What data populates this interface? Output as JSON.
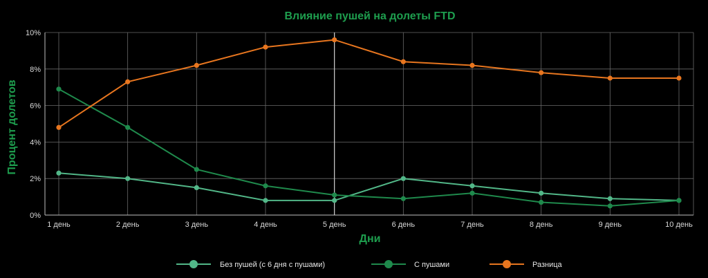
{
  "chart_data": {
    "type": "line",
    "title": "Влияние пушей на долеты FTD",
    "xlabel": "Дни",
    "ylabel": "Процент долетов",
    "categories": [
      "1 день",
      "2 день",
      "3 день",
      "4 день",
      "5 день",
      "6 день",
      "7 день",
      "8 день",
      "9 день",
      "10 день"
    ],
    "y_ticks": [
      "0%",
      "2%",
      "4%",
      "6%",
      "8%",
      "10%"
    ],
    "series": [
      {
        "name": "Без пушей (с 6 дня с пушами)",
        "color": "#52b788",
        "values": [
          2.3,
          2.0,
          1.5,
          0.8,
          0.8,
          2.0,
          1.6,
          1.2,
          0.9,
          0.8
        ]
      },
      {
        "name": "С пушами",
        "color": "#1f8a4c",
        "values": [
          6.9,
          4.8,
          2.5,
          1.6,
          1.1,
          0.9,
          1.2,
          0.7,
          0.5,
          0.8
        ]
      },
      {
        "name": "Разница",
        "color": "#e8761f",
        "values": [
          4.8,
          7.3,
          8.2,
          9.2,
          9.6,
          8.4,
          8.2,
          7.8,
          7.5,
          7.5
        ]
      }
    ],
    "grid": true,
    "legend_position": "bottom",
    "highlight_category": "5 день",
    "colors": {
      "title": "#1e9e4e",
      "axis_title": "#1e9e4e",
      "grid": "#6a6a6a",
      "axis": "#bfbfbf",
      "highlight": "#d0d0d0"
    }
  }
}
